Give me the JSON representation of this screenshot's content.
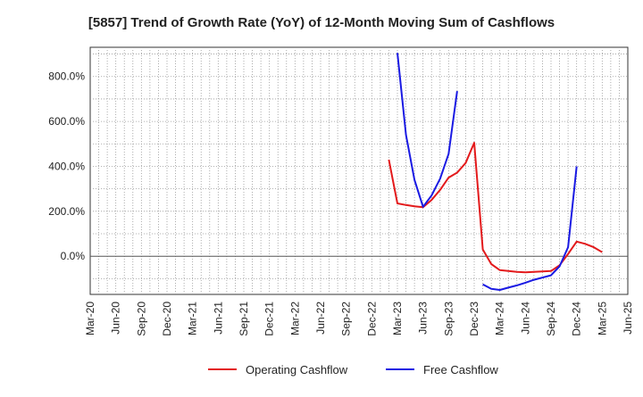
{
  "chart_data": {
    "type": "line",
    "title": "[5857]  Trend of Growth Rate (YoY) of 12-Month Moving Sum of Cashflows",
    "xlabel": "",
    "ylabel": "",
    "x_ticks": [
      "Mar-20",
      "Jun-20",
      "Sep-20",
      "Dec-20",
      "Mar-21",
      "Jun-21",
      "Sep-21",
      "Dec-21",
      "Mar-22",
      "Jun-22",
      "Sep-22",
      "Dec-22",
      "Mar-23",
      "Jun-23",
      "Sep-23",
      "Dec-23",
      "Mar-24",
      "Jun-24",
      "Sep-24",
      "Dec-24",
      "Mar-25",
      "Jun-25"
    ],
    "y_ticks": [
      "0.0%",
      "200.0%",
      "400.0%",
      "600.0%",
      "800.0%"
    ],
    "ylim": [
      -170,
      930
    ],
    "grid": true,
    "legend_position": "bottom-center",
    "series": [
      {
        "name": "Operating Cashflow",
        "color": "#e31a1c",
        "points": [
          [
            "2023-02",
            430
          ],
          [
            "2023-03",
            235
          ],
          [
            "2023-04",
            228
          ],
          [
            "2023-05",
            222
          ],
          [
            "2023-06",
            218
          ],
          [
            "2023-07",
            250
          ],
          [
            "2023-08",
            295
          ],
          [
            "2023-09",
            350
          ],
          [
            "2023-10",
            372
          ],
          [
            "2023-11",
            415
          ],
          [
            "2023-12",
            505
          ],
          [
            "2024-01",
            30
          ],
          [
            "2024-02",
            -35
          ],
          [
            "2024-03",
            -62
          ],
          [
            "2024-04",
            -66
          ],
          [
            "2024-05",
            -70
          ],
          [
            "2024-06",
            -72
          ],
          [
            "2024-07",
            -70
          ],
          [
            "2024-08",
            -68
          ],
          [
            "2024-09",
            -66
          ],
          [
            "2024-10",
            -40
          ],
          [
            "2024-11",
            10
          ],
          [
            "2024-12",
            65
          ],
          [
            "2025-01",
            55
          ],
          [
            "2025-02",
            40
          ],
          [
            "2025-03",
            18
          ]
        ]
      },
      {
        "name": "Free Cashflow",
        "color": "#1a1ae3",
        "points": [
          [
            "2023-03",
            905
          ],
          [
            "2023-04",
            540
          ],
          [
            "2023-05",
            340
          ],
          [
            "2023-06",
            220
          ],
          [
            "2023-07",
            270
          ],
          [
            "2023-08",
            345
          ],
          [
            "2023-09",
            455
          ],
          [
            "2023-10",
            735
          ],
          null,
          [
            "2024-01",
            -125
          ],
          [
            "2024-02",
            -145
          ],
          [
            "2024-03",
            -150
          ],
          [
            "2024-04",
            -140
          ],
          [
            "2024-05",
            -130
          ],
          [
            "2024-06",
            -118
          ],
          [
            "2024-07",
            -105
          ],
          [
            "2024-08",
            -95
          ],
          [
            "2024-09",
            -85
          ],
          [
            "2024-10",
            -45
          ],
          [
            "2024-11",
            40
          ],
          [
            "2024-12",
            400
          ]
        ]
      }
    ]
  }
}
